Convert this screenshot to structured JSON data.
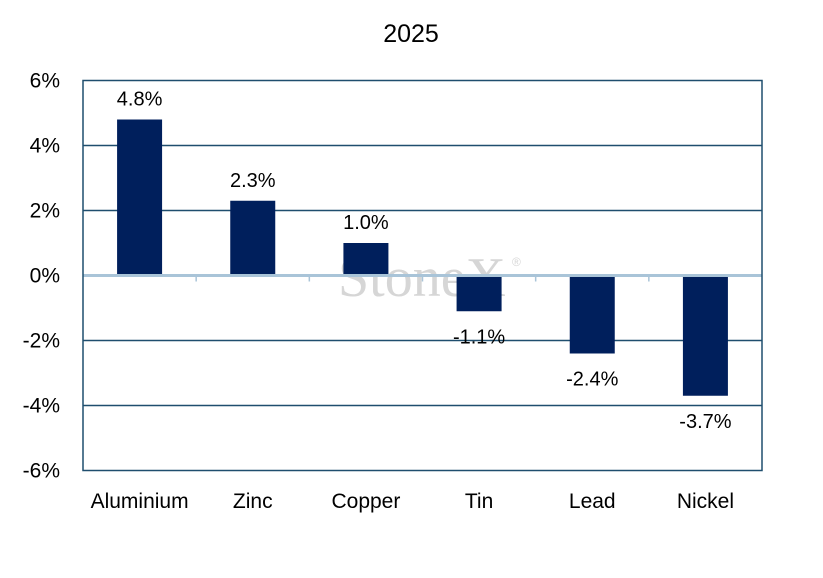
{
  "chart_data": {
    "type": "bar",
    "title": "2025",
    "categories": [
      "Aluminium",
      "Zinc",
      "Copper",
      "Tin",
      "Lead",
      "Nickel"
    ],
    "values": [
      4.8,
      2.3,
      1.0,
      -1.1,
      -2.4,
      -3.7
    ],
    "data_labels": [
      "4.8%",
      "2.3%",
      "1.0%",
      "-1.1%",
      "-2.4%",
      "-3.7%"
    ],
    "ylim": [
      -6,
      6
    ],
    "yticks": [
      6,
      4,
      2,
      0,
      -2,
      -4,
      -6
    ],
    "ytick_labels": [
      "6%",
      "4%",
      "2%",
      "0%",
      "-2%",
      "-4%",
      "-6%"
    ],
    "xlabel": "",
    "ylabel": "",
    "grid": true,
    "legend": "none",
    "bar_color": "#001f5c",
    "grid_color": "#1f4e6e",
    "zero_line_color": "#a9c4d8"
  },
  "watermark": {
    "text": "StoneX",
    "mark": "®"
  }
}
